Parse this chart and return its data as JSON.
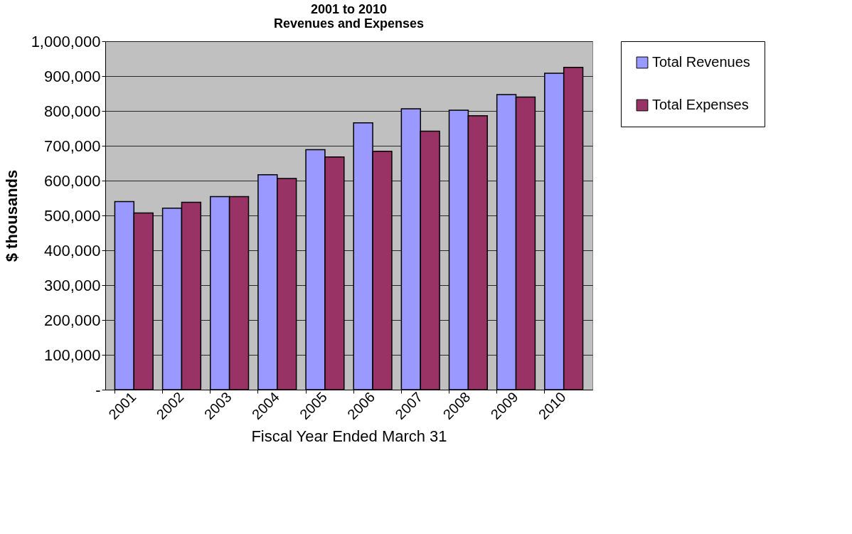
{
  "chart_data": {
    "type": "bar",
    "title": [
      "2001 to 2010",
      "Revenues and Expenses"
    ],
    "xlabel": "Fiscal Year Ended March 31",
    "ylabel": "$ thousands",
    "categories": [
      "2001",
      "2002",
      "2003",
      "2004",
      "2005",
      "2006",
      "2007",
      "2008",
      "2009",
      "2010"
    ],
    "series": [
      {
        "name": "Total Revenues",
        "color": "#9999ff",
        "values": [
          540000,
          521000,
          554000,
          617000,
          689000,
          766000,
          806000,
          802000,
          847000,
          908000
        ]
      },
      {
        "name": "Total Expenses",
        "color": "#993366",
        "values": [
          507000,
          538000,
          554000,
          606000,
          668000,
          684000,
          742000,
          786000,
          840000,
          925000
        ]
      }
    ],
    "ylim": [
      0,
      1000000
    ],
    "yticks": [
      {
        "value": 0,
        "label": "-"
      },
      {
        "value": 100000,
        "label": "100,000"
      },
      {
        "value": 200000,
        "label": "200,000"
      },
      {
        "value": 300000,
        "label": "300,000"
      },
      {
        "value": 400000,
        "label": "400,000"
      },
      {
        "value": 500000,
        "label": "500,000"
      },
      {
        "value": 600000,
        "label": "600,000"
      },
      {
        "value": 700000,
        "label": "700,000"
      },
      {
        "value": 800000,
        "label": "800,000"
      },
      {
        "value": 900000,
        "label": "900,000"
      },
      {
        "value": 1000000,
        "label": "1,000,000"
      }
    ],
    "grid": "y",
    "legend": "right"
  }
}
